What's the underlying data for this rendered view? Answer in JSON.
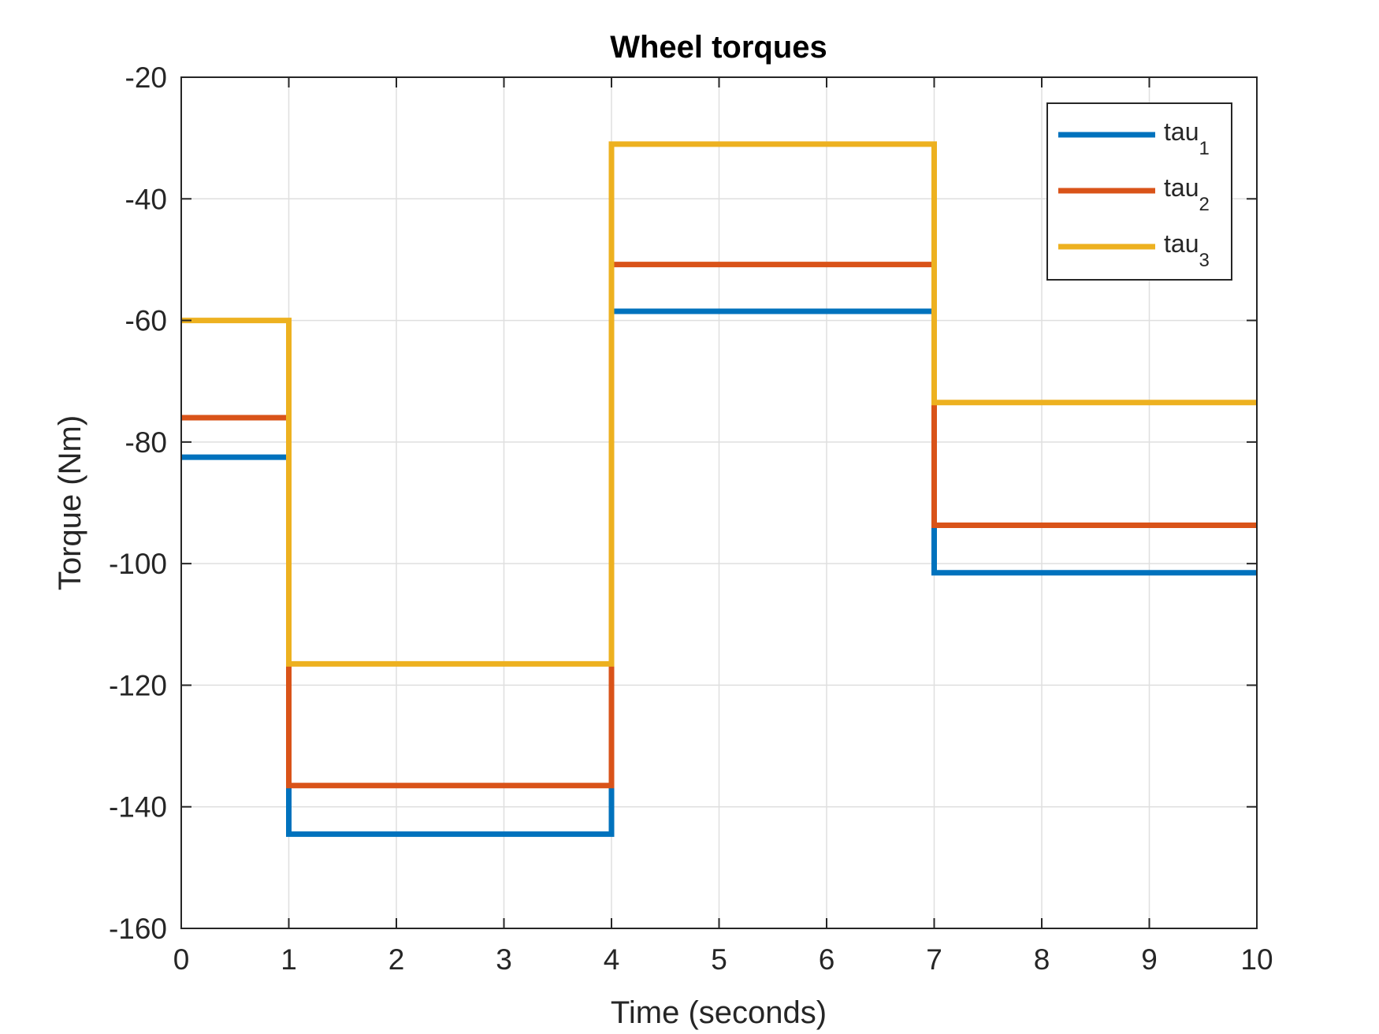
{
  "chart_data": {
    "type": "line",
    "step": true,
    "title": "Wheel torques",
    "xlabel": "Time (seconds)",
    "ylabel": "Torque (Nm)",
    "xlim": [
      0,
      10
    ],
    "ylim": [
      -160,
      -20
    ],
    "xticks": [
      0,
      1,
      2,
      3,
      4,
      5,
      6,
      7,
      8,
      9,
      10
    ],
    "yticks": [
      -20,
      -40,
      -60,
      -80,
      -100,
      -120,
      -140,
      -160
    ],
    "grid": true,
    "legend_position": "top-right",
    "series": [
      {
        "name": "tau_1",
        "label_base": "tau",
        "label_sub": "1",
        "color": "#0072BD",
        "x": [
          0,
          1,
          1,
          4,
          4,
          7,
          7,
          10
        ],
        "y": [
          -82.5,
          -82.5,
          -144.5,
          -144.5,
          -58.5,
          -58.5,
          -101.5,
          -101.5
        ]
      },
      {
        "name": "tau_2",
        "label_base": "tau",
        "label_sub": "2",
        "color": "#D95319",
        "x": [
          0,
          1,
          1,
          4,
          4,
          7,
          7,
          10
        ],
        "y": [
          -76,
          -76,
          -136.5,
          -136.5,
          -50.8,
          -50.8,
          -93.7,
          -93.7
        ]
      },
      {
        "name": "tau_3",
        "label_base": "tau",
        "label_sub": "3",
        "color": "#EDB120",
        "x": [
          0,
          1,
          1,
          4,
          4,
          7,
          7,
          10
        ],
        "y": [
          -60,
          -60,
          -116.5,
          -116.5,
          -31,
          -31,
          -73.5,
          -73.5
        ]
      }
    ]
  }
}
